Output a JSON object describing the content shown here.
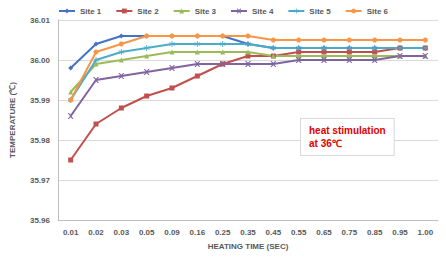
{
  "chart_data": {
    "type": "line",
    "x_label": "HEATING TIME (SEC)",
    "y_label": "TEMPERATURE (℃)",
    "annotation": "heat stimulation\nat 36℃",
    "categories": [
      "0.01",
      "0.02",
      "0.03",
      "0.05",
      "0.09",
      "0.16",
      "0.25",
      "0.35",
      "0.45",
      "0.55",
      "0.65",
      "0.75",
      "0.85",
      "0.95",
      "1.00"
    ],
    "series": [
      {
        "name": "Site 1",
        "color": "#4472c4",
        "marker": "diamond",
        "values": [
          35.998,
          36.004,
          36.006,
          36.006,
          36.006,
          36.006,
          36.006,
          36.004,
          36.003,
          36.003,
          36.003,
          36.003,
          36.003,
          36.003,
          36.003
        ]
      },
      {
        "name": "Site 2",
        "color": "#c0504d",
        "marker": "square",
        "values": [
          35.975,
          35.984,
          35.988,
          35.991,
          35.993,
          35.996,
          35.999,
          36.001,
          36.001,
          36.002,
          36.002,
          36.002,
          36.002,
          36.003,
          36.003
        ]
      },
      {
        "name": "Site 3",
        "color": "#9bbb59",
        "marker": "triangle",
        "values": [
          35.992,
          35.999,
          36.0,
          36.001,
          36.002,
          36.002,
          36.002,
          36.002,
          36.001,
          36.001,
          36.001,
          36.001,
          36.001,
          36.001,
          36.001
        ]
      },
      {
        "name": "Site 4",
        "color": "#8064a2",
        "marker": "x",
        "values": [
          35.986,
          35.995,
          35.996,
          35.997,
          35.998,
          35.999,
          35.999,
          35.999,
          35.999,
          36.0,
          36.0,
          36.0,
          36.0,
          36.001,
          36.001
        ]
      },
      {
        "name": "Site 5",
        "color": "#4bacc6",
        "marker": "asterisk",
        "values": [
          35.99,
          36.0,
          36.002,
          36.003,
          36.004,
          36.004,
          36.004,
          36.004,
          36.003,
          36.003,
          36.003,
          36.003,
          36.003,
          36.003,
          36.003
        ]
      },
      {
        "name": "Site 6",
        "color": "#f79646",
        "marker": "circle",
        "values": [
          35.99,
          36.002,
          36.004,
          36.006,
          36.006,
          36.006,
          36.006,
          36.006,
          36.005,
          36.005,
          36.005,
          36.005,
          36.005,
          36.005,
          36.005
        ]
      }
    ],
    "ylim": [
      35.96,
      36.01
    ],
    "yticks": [
      35.96,
      35.97,
      35.98,
      35.99,
      {
        "value": 36,
        "label": "36.00"
      },
      36.01
    ],
    "grid": true,
    "legend": "top"
  }
}
